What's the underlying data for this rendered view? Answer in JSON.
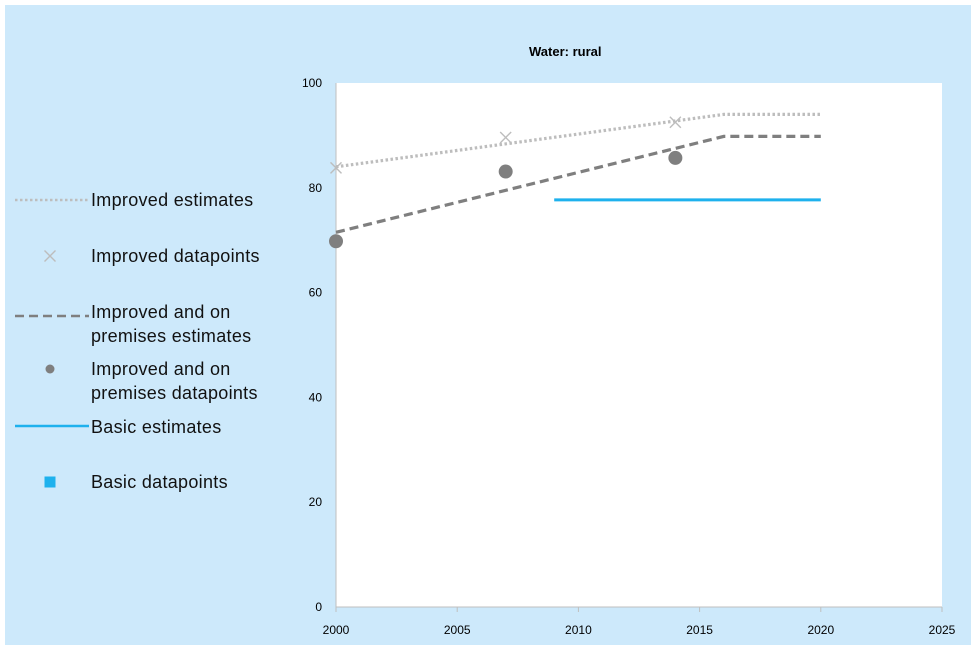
{
  "chart_data": {
    "type": "line",
    "title": "Water: rural",
    "xlabel": "",
    "ylabel": "",
    "xlim": [
      2000,
      2025
    ],
    "ylim": [
      0,
      100
    ],
    "x_ticks": [
      2000,
      2005,
      2010,
      2015,
      2020,
      2025
    ],
    "y_ticks": [
      0,
      20,
      40,
      60,
      80,
      100
    ],
    "grid": false,
    "legend_position": "left",
    "series": [
      {
        "name": "Improved estimates",
        "kind": "line",
        "style": "dotted",
        "color": "#bdbdbd",
        "points": [
          [
            2000,
            84
          ],
          [
            2016,
            94
          ],
          [
            2020,
            94
          ]
        ]
      },
      {
        "name": "Improved datapoints",
        "kind": "marker",
        "marker": "x",
        "color": "#bdbdbd",
        "points": [
          [
            2000,
            83.8
          ],
          [
            2007,
            89.6
          ],
          [
            2014,
            92.5
          ]
        ]
      },
      {
        "name": "Improved and on premises estimates",
        "kind": "line",
        "style": "dashed",
        "color": "#7f7f7f",
        "points": [
          [
            2000,
            71.5
          ],
          [
            2016,
            89.8
          ],
          [
            2020,
            89.8
          ]
        ]
      },
      {
        "name": "Improved and on premises datapoints",
        "kind": "marker",
        "marker": "circle",
        "color": "#7f7f7f",
        "points": [
          [
            2000,
            69.8
          ],
          [
            2007,
            83.1
          ],
          [
            2014,
            85.7
          ]
        ]
      },
      {
        "name": "Basic estimates",
        "kind": "line",
        "style": "solid",
        "color": "#1eb1ed",
        "points": [
          [
            2009,
            77.7
          ],
          [
            2020,
            77.7
          ]
        ]
      },
      {
        "name": "Basic datapoints",
        "kind": "marker",
        "marker": "square",
        "color": "#1eb1ed",
        "points": []
      }
    ]
  },
  "legend": [
    {
      "lines": [
        "Improved estimates"
      ],
      "symbol": "dotted",
      "color": "#bdbdbd"
    },
    {
      "lines": [
        "Improved datapoints"
      ],
      "symbol": "x",
      "color": "#bdbdbd"
    },
    {
      "lines": [
        "Improved and on",
        "premises estimates"
      ],
      "symbol": "dashed",
      "color": "#7f7f7f"
    },
    {
      "lines": [
        "Improved and on",
        "premises datapoints"
      ],
      "symbol": "circle",
      "color": "#7f7f7f"
    },
    {
      "lines": [
        "Basic estimates"
      ],
      "symbol": "solid",
      "color": "#1eb1ed"
    },
    {
      "lines": [
        "Basic datapoints"
      ],
      "symbol": "square",
      "color": "#1eb1ed"
    }
  ]
}
